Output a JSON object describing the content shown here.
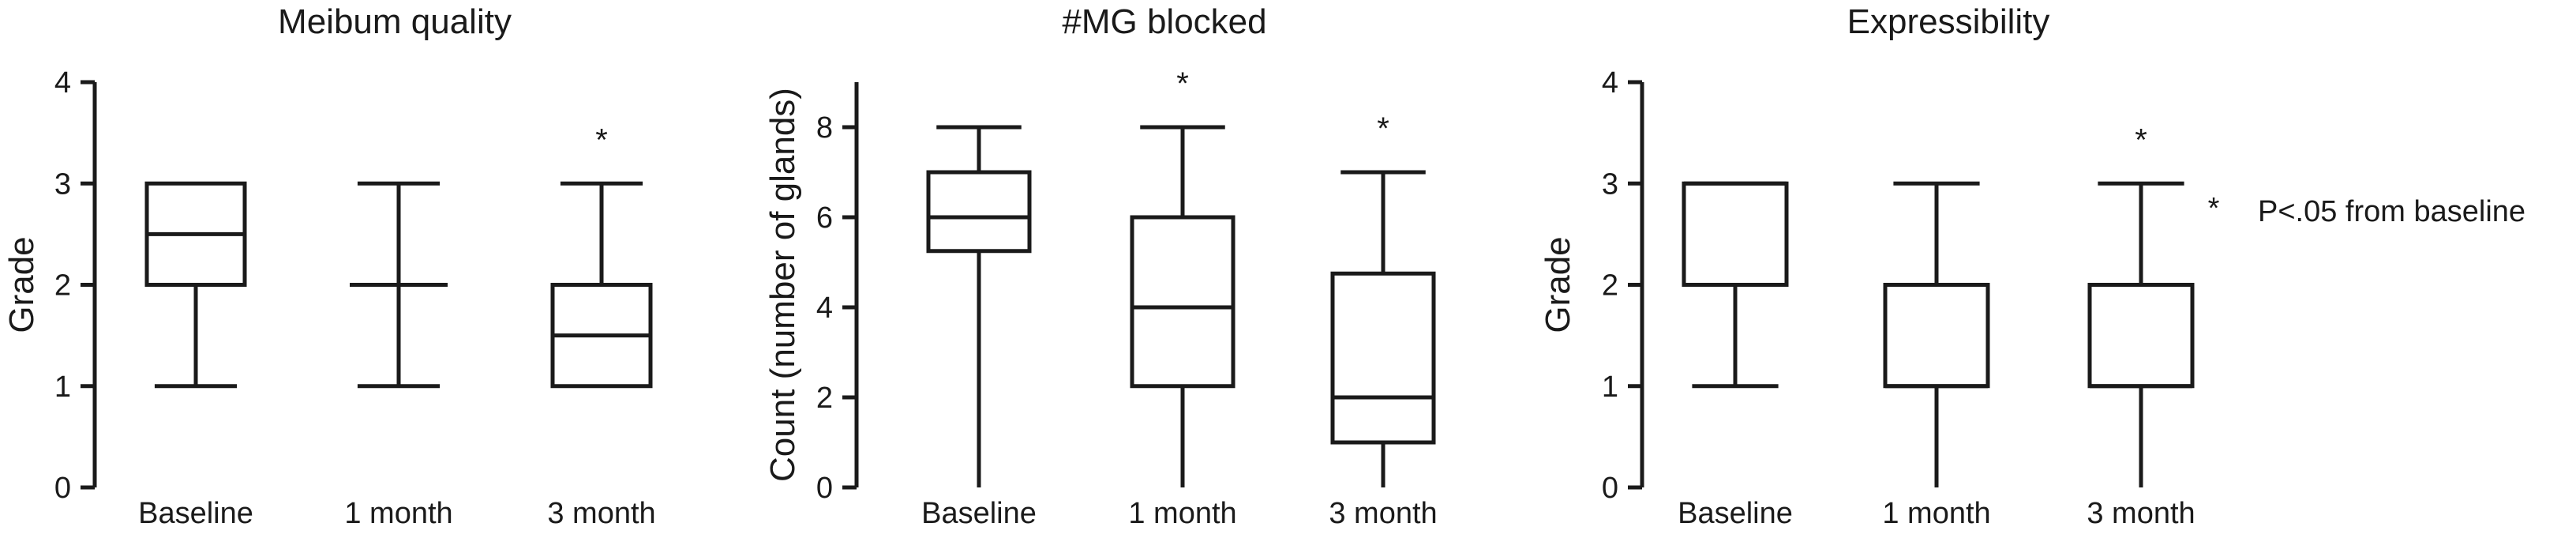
{
  "chart_data": [
    {
      "type": "box",
      "title": "Meibum quality",
      "ylabel": "Grade",
      "ylim": [
        0,
        4
      ],
      "yticks": [
        0,
        1,
        2,
        3,
        4
      ],
      "categories": [
        "Baseline",
        "1 month",
        "3 month"
      ],
      "boxes": [
        {
          "min": 1,
          "q1": 2,
          "median": 2.5,
          "q3": 3,
          "max": 3,
          "significant": false
        },
        {
          "min": 1,
          "q1": 2,
          "median": 2,
          "q3": 2,
          "max": 3,
          "significant": false
        },
        {
          "min": 1,
          "q1": 1,
          "median": 1.5,
          "q3": 2,
          "max": 3,
          "significant": true
        }
      ]
    },
    {
      "type": "box",
      "title": "#MG blocked",
      "ylabel": "Count (number of glands)",
      "ylim": [
        0,
        9
      ],
      "yticks": [
        0,
        2,
        4,
        6,
        8
      ],
      "categories": [
        "Baseline",
        "1 month",
        "3 month"
      ],
      "boxes": [
        {
          "min": 0,
          "q1": 5.25,
          "median": 6,
          "q3": 7,
          "max": 8,
          "significant": false
        },
        {
          "min": 0,
          "q1": 2.25,
          "median": 4,
          "q3": 6,
          "max": 8,
          "significant": true
        },
        {
          "min": 0,
          "q1": 1,
          "median": 2,
          "q3": 4.75,
          "max": 7,
          "significant": true
        }
      ]
    },
    {
      "type": "box",
      "title": "Expressibility",
      "ylabel": "Grade",
      "ylim": [
        0,
        4
      ],
      "yticks": [
        0,
        1,
        2,
        3,
        4
      ],
      "categories": [
        "Baseline",
        "1 month",
        "3 month"
      ],
      "boxes": [
        {
          "min": 1,
          "q1": 2,
          "median": 3,
          "q3": 3,
          "max": 3,
          "significant": false
        },
        {
          "min": 0,
          "q1": 1,
          "median": 1,
          "q3": 2,
          "max": 3,
          "significant": false
        },
        {
          "min": 0,
          "q1": 1,
          "median": 1,
          "q3": 2,
          "max": 3,
          "significant": true
        }
      ]
    }
  ],
  "significance_marker": "*",
  "legend": {
    "symbol": "*",
    "text": "P<.05 from baseline"
  }
}
